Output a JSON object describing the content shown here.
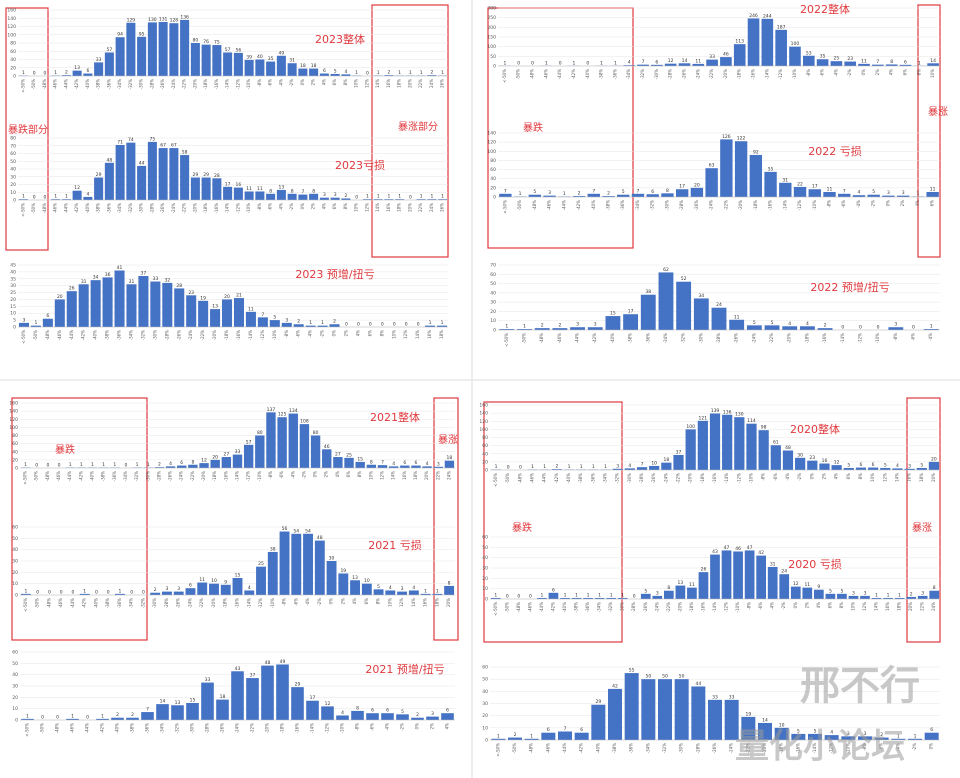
{
  "chart_data": [
    {
      "type": "bar",
      "title": "2023整体",
      "color": "#4472c4",
      "ylim": [
        0,
        160
      ],
      "yticks": [
        0,
        20,
        40,
        60,
        80,
        100,
        120,
        140,
        160
      ],
      "categories": [
        "<-50%",
        "-50%",
        "-48%",
        "-46%",
        "-44%",
        "-42%",
        "-40%",
        "-38%",
        "-36%",
        "-34%",
        "-32%",
        "-30%",
        "-28%",
        "-26%",
        "-24%",
        "-22%",
        "-20%",
        "-18%",
        "-16%",
        "-14%",
        "-12%",
        "-10%",
        "-8%",
        "-6%",
        "-4%",
        "-2%",
        "0%",
        "2%",
        "4%",
        "6%",
        "8%",
        "10%",
        "12%",
        "14%",
        "16%",
        "18%",
        "20%",
        "22%",
        "24%",
        "26%"
      ],
      "values": [
        1,
        0,
        0,
        1,
        2,
        13,
        6,
        33,
        57,
        94,
        129,
        95,
        130,
        131,
        128,
        136,
        80,
        76,
        75,
        57,
        56,
        39,
        40,
        35,
        49,
        31,
        18,
        18,
        6,
        5,
        4,
        1,
        0,
        1,
        2,
        1,
        1,
        1,
        2,
        1
      ]
    },
    {
      "type": "bar",
      "title": "2023亏损",
      "color": "#4472c4",
      "ylim": [
        0,
        80
      ],
      "yticks": [
        0,
        10,
        20,
        30,
        40,
        50,
        60,
        70,
        80
      ],
      "categories": [
        "<-50%",
        "-50%",
        "-48%",
        "-46%",
        "-44%",
        "-42%",
        "-40%",
        "-38%",
        "-36%",
        "-34%",
        "-32%",
        "-30%",
        "-28%",
        "-26%",
        "-24%",
        "-22%",
        "-20%",
        "-18%",
        "-16%",
        "-14%",
        "-12%",
        "-10%",
        "-8%",
        "-6%",
        "-4%",
        "-2%",
        "0%",
        "2%",
        "4%",
        "6%",
        "8%",
        "10%",
        "12%",
        "14%",
        "16%",
        "18%",
        "20%",
        "22%",
        "24%",
        "26%"
      ],
      "values": [
        1,
        0,
        0,
        1,
        1,
        12,
        4,
        29,
        48,
        71,
        74,
        44,
        75,
        67,
        67,
        58,
        29,
        29,
        28,
        17,
        16,
        11,
        11,
        8,
        13,
        8,
        7,
        8,
        3,
        3,
        2,
        0,
        1,
        1,
        1,
        1,
        0,
        1,
        1,
        1
      ]
    },
    {
      "type": "bar",
      "title": "2023 预增/扭亏",
      "color": "#4472c4",
      "ylim": [
        0,
        45
      ],
      "yticks": [
        0,
        5,
        10,
        15,
        20,
        25,
        30,
        35,
        40,
        45
      ],
      "categories": [
        "<-50%",
        "-50%",
        "-48%",
        "-46%",
        "-44%",
        "-42%",
        "-40%",
        "-38%",
        "-36%",
        "-34%",
        "-32%",
        "-30%",
        "-28%",
        "-26%",
        "-24%",
        "-22%",
        "-20%",
        "-18%",
        "-16%",
        "-14%",
        "-12%",
        "-10%",
        "-8%",
        "-6%",
        "-4%",
        "-2%",
        "0%",
        "2%",
        "4%",
        "6%",
        "8%",
        "10%",
        "12%",
        "14%",
        "16%",
        "18%"
      ],
      "values": [
        3,
        1,
        6,
        20,
        26,
        31,
        34,
        36,
        41,
        31,
        37,
        33,
        32,
        28,
        23,
        19,
        13,
        20,
        21,
        11,
        7,
        5,
        3,
        2,
        1,
        1,
        2,
        0,
        0,
        0,
        0,
        0,
        0,
        0,
        1,
        1
      ]
    },
    {
      "type": "bar",
      "title": "2022整体",
      "color": "#4472c4",
      "ylim": [
        0,
        300
      ],
      "yticks": [
        0,
        50,
        100,
        150,
        200,
        250,
        300
      ],
      "categories": [
        "<-50%",
        "-50%",
        "-48%",
        "-46%",
        "-44%",
        "-42%",
        "-40%",
        "-38%",
        "-36%",
        "-34%",
        "-32%",
        "-30%",
        "-28%",
        "-26%",
        "-24%",
        "-22%",
        "-20%",
        "-18%",
        "-16%",
        "-14%",
        "-12%",
        "-10%",
        "-8%",
        "-6%",
        "-4%",
        "-2%",
        "0%",
        "2%",
        "4%",
        "6%",
        "8%",
        "10%"
      ],
      "values": [
        1,
        0,
        0,
        1,
        0,
        1,
        0,
        1,
        1,
        4,
        7,
        6,
        12,
        14,
        11,
        33,
        46,
        113,
        246,
        244,
        187,
        100,
        53,
        35,
        25,
        23,
        11,
        7,
        8,
        6,
        1,
        14
      ]
    },
    {
      "type": "bar",
      "title": "2022 亏损",
      "color": "#4472c4",
      "ylim": [
        0,
        140
      ],
      "yticks": [
        0,
        20,
        40,
        60,
        80,
        100,
        120,
        140
      ],
      "categories": [
        "<-50%",
        "-50%",
        "-48%",
        "-46%",
        "-44%",
        "-42%",
        "-40%",
        "-38%",
        "-36%",
        "-34%",
        "-32%",
        "-30%",
        "-28%",
        "-26%",
        "-24%",
        "-22%",
        "-20%",
        "-18%",
        "-16%",
        "-14%",
        "-12%",
        "-10%",
        "-8%",
        "-6%",
        "-4%",
        "-2%",
        "0%",
        "2%",
        "4%",
        "6%"
      ],
      "values": [
        7,
        1,
        5,
        3,
        1,
        2,
        7,
        2,
        5,
        7,
        6,
        8,
        17,
        20,
        63,
        126,
        122,
        92,
        55,
        31,
        22,
        17,
        11,
        7,
        4,
        5,
        3,
        3,
        1,
        11
      ]
    },
    {
      "type": "bar",
      "title": "2022 预增/扭亏",
      "color": "#4472c4",
      "ylim": [
        0,
        70
      ],
      "yticks": [
        0,
        10,
        20,
        30,
        40,
        50,
        60,
        70
      ],
      "categories": [
        "<-50%",
        "-50%",
        "-48%",
        "-46%",
        "-44%",
        "-42%",
        "-40%",
        "-38%",
        "-36%",
        "-34%",
        "-32%",
        "-30%",
        "-28%",
        "-26%",
        "-24%",
        "-22%",
        "-20%",
        "-18%",
        "-16%",
        "-14%",
        "-12%",
        "-10%",
        "-8%",
        "-6%",
        "-4%"
      ],
      "values": [
        1,
        1,
        2,
        2,
        3,
        3,
        15,
        17,
        38,
        62,
        52,
        34,
        24,
        11,
        5,
        5,
        4,
        4,
        2,
        0,
        0,
        0,
        3,
        0,
        1
      ]
    },
    {
      "type": "bar",
      "title": "2021整体",
      "color": "#4472c4",
      "ylim": [
        0,
        160
      ],
      "yticks": [
        0,
        20,
        40,
        60,
        80,
        100,
        120,
        140,
        160
      ],
      "categories": [
        "<-50%",
        "-50%",
        "-48%",
        "-46%",
        "-44%",
        "-42%",
        "-40%",
        "-38%",
        "-36%",
        "-34%",
        "-32%",
        "-30%",
        "-28%",
        "-26%",
        "-24%",
        "-22%",
        "-20%",
        "-18%",
        "-16%",
        "-14%",
        "-12%",
        "-10%",
        "-8%",
        "-6%",
        "-4%",
        "-2%",
        "0%",
        "2%",
        "4%",
        "6%",
        "8%",
        "10%",
        "12%",
        "14%",
        "16%",
        "18%",
        "20%",
        "22%",
        "24%"
      ],
      "values": [
        1,
        0,
        0,
        0,
        1,
        1,
        1,
        1,
        1,
        0,
        1,
        1,
        2,
        4,
        6,
        8,
        12,
        20,
        27,
        33,
        57,
        80,
        137,
        125,
        134,
        108,
        80,
        46,
        27,
        25,
        15,
        8,
        7,
        4,
        6,
        6,
        4,
        3,
        18
      ]
    },
    {
      "type": "bar",
      "title": "2021 亏损",
      "color": "#4472c4",
      "ylim": [
        0,
        60
      ],
      "yticks": [
        0,
        10,
        20,
        30,
        40,
        50,
        60
      ],
      "categories": [
        "<-50%",
        "-50%",
        "-48%",
        "-46%",
        "-44%",
        "-42%",
        "-40%",
        "-38%",
        "-36%",
        "-34%",
        "-32%",
        "-30%",
        "-28%",
        "-26%",
        "-24%",
        "-22%",
        "-20%",
        "-18%",
        "-16%",
        "-14%",
        "-12%",
        "-10%",
        "-8%",
        "-6%",
        "-4%",
        "-2%",
        "0%",
        "2%",
        "4%",
        "6%",
        "8%",
        "10%",
        "12%",
        "14%",
        "16%",
        "18%",
        "20%"
      ],
      "values": [
        1,
        0,
        0,
        0,
        0,
        1,
        0,
        0,
        1,
        0,
        0,
        2,
        3,
        3,
        6,
        11,
        10,
        9,
        15,
        4,
        25,
        38,
        56,
        54,
        54,
        48,
        30,
        19,
        13,
        10,
        5,
        4,
        3,
        4,
        1,
        1,
        8
      ]
    },
    {
      "type": "bar",
      "title": "2021 预增/扭亏",
      "color": "#4472c4",
      "ylim": [
        0,
        60
      ],
      "yticks": [
        0,
        10,
        20,
        30,
        40,
        50,
        60
      ],
      "categories": [
        "<-50%",
        "-50%",
        "-48%",
        "-46%",
        "-44%",
        "-42%",
        "-40%",
        "-38%",
        "-36%",
        "-34%",
        "-32%",
        "-30%",
        "-28%",
        "-26%",
        "-24%",
        "-22%",
        "-20%",
        "-18%",
        "-16%",
        "-14%",
        "-12%",
        "-10%",
        "-8%",
        "-6%",
        "-4%",
        "-2%",
        "0%",
        "2%",
        "4%"
      ],
      "values": [
        1,
        0,
        0,
        1,
        0,
        1,
        2,
        2,
        7,
        14,
        13,
        15,
        33,
        18,
        43,
        37,
        48,
        49,
        29,
        17,
        12,
        4,
        8,
        6,
        6,
        5,
        2,
        3,
        6
      ]
    },
    {
      "type": "bar",
      "title": "2020整体",
      "color": "#4472c4",
      "ylim": [
        0,
        160
      ],
      "yticks": [
        0,
        20,
        40,
        60,
        80,
        100,
        120,
        140,
        160
      ],
      "categories": [
        "<-50%",
        "-50%",
        "-48%",
        "-46%",
        "-44%",
        "-42%",
        "-40%",
        "-38%",
        "-36%",
        "-34%",
        "-32%",
        "-30%",
        "-28%",
        "-26%",
        "-24%",
        "-22%",
        "-20%",
        "-18%",
        "-16%",
        "-14%",
        "-12%",
        "-10%",
        "-8%",
        "-6%",
        "-4%",
        "-2%",
        "0%",
        "2%",
        "4%",
        "6%",
        "8%",
        "10%",
        "12%",
        "14%",
        "16%",
        "18%",
        "20%"
      ],
      "values": [
        1,
        0,
        0,
        1,
        1,
        2,
        1,
        1,
        1,
        1,
        3,
        4,
        7,
        10,
        18,
        37,
        100,
        121,
        139,
        136,
        130,
        114,
        98,
        61,
        48,
        30,
        23,
        16,
        12,
        5,
        6,
        6,
        5,
        4,
        3,
        5,
        20
      ]
    },
    {
      "type": "bar",
      "title": "2020 亏损",
      "color": "#4472c4",
      "ylim": [
        0,
        60
      ],
      "yticks": [
        0,
        10,
        20,
        30,
        40,
        50,
        60
      ],
      "categories": [
        "<-50%",
        "-50%",
        "-48%",
        "-46%",
        "-44%",
        "-42%",
        "-40%",
        "-38%",
        "-36%",
        "-34%",
        "-32%",
        "-30%",
        "-28%",
        "-26%",
        "-24%",
        "-22%",
        "-20%",
        "-18%",
        "-16%",
        "-14%",
        "-12%",
        "-10%",
        "-8%",
        "-6%",
        "-4%",
        "-2%",
        "0%",
        "2%",
        "4%",
        "6%",
        "8%",
        "10%",
        "12%",
        "14%",
        "16%",
        "18%",
        "20%",
        "22%",
        "24%"
      ],
      "values": [
        1,
        0,
        0,
        0,
        1,
        6,
        1,
        1,
        1,
        1,
        1,
        1,
        0,
        5,
        3,
        8,
        13,
        11,
        26,
        43,
        47,
        46,
        47,
        42,
        31,
        24,
        12,
        11,
        9,
        5,
        5,
        3,
        3,
        1,
        1,
        1,
        2,
        3,
        8
      ]
    },
    {
      "type": "bar",
      "color": "#4472c4",
      "ylim": [
        0,
        60
      ],
      "yticks": [
        0,
        10,
        20,
        30,
        40,
        50,
        60
      ],
      "categories": [
        "<-50%",
        "-50%",
        "-48%",
        "-46%",
        "-44%",
        "-42%",
        "-40%",
        "-38%",
        "-36%",
        "-34%",
        "-32%",
        "-30%",
        "-28%",
        "-26%",
        "-24%",
        "-22%",
        "-20%",
        "-18%",
        "-16%",
        "-14%",
        "-12%",
        "-10%",
        "-8%",
        "-6%",
        "-4%",
        "-2%",
        "0%"
      ],
      "values": [
        1,
        2,
        1,
        6,
        7,
        6,
        29,
        42,
        55,
        50,
        50,
        50,
        44,
        33,
        33,
        19,
        14,
        10,
        5,
        5,
        4,
        3,
        3,
        2,
        1,
        1,
        6
      ]
    }
  ],
  "annotations": [
    "暴跌部分",
    "暴涨部分",
    "暴跌",
    "暴涨",
    "暴跌",
    "暴涨",
    "暴跌",
    "暴涨"
  ],
  "watermark": [
    "邢不行",
    "量化小论坛"
  ]
}
